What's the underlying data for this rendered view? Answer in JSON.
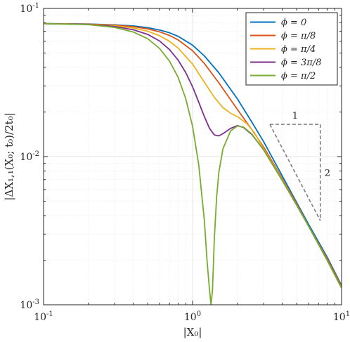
{
  "chart_data": {
    "type": "line",
    "xscale": "log",
    "yscale": "log",
    "xlim": [
      0.1,
      10
    ],
    "ylim": [
      0.001,
      0.1
    ],
    "grid": true,
    "minor_grid": true,
    "legend_position": "top-right",
    "xlabel": "|X₀|",
    "ylabel": "|ΔX₁,₁(X₀; t₀)/2t₀|",
    "x_ticks": [
      {
        "value": 0.1,
        "base": "10",
        "exp": "-1"
      },
      {
        "value": 1,
        "base": "10",
        "exp": "0"
      },
      {
        "value": 10,
        "base": "10",
        "exp": "1"
      }
    ],
    "y_ticks": [
      {
        "value": 0.1,
        "base": "10",
        "exp": "-1"
      },
      {
        "value": 0.01,
        "base": "10",
        "exp": "-2"
      },
      {
        "value": 0.001,
        "base": "10",
        "exp": "-3"
      }
    ],
    "series": [
      {
        "name": "ϕ = 0",
        "color": "#0072BD",
        "x": [
          0.1,
          0.2,
          0.3,
          0.4,
          0.5,
          0.6,
          0.7,
          0.8,
          1.0,
          1.2,
          1.5,
          2.0,
          2.5,
          3.0,
          4.0,
          5.0,
          6.0,
          8.0,
          10.0
        ],
        "y": [
          0.079,
          0.0785,
          0.0775,
          0.0762,
          0.0742,
          0.0715,
          0.0685,
          0.0648,
          0.0565,
          0.0478,
          0.0368,
          0.0245,
          0.0171,
          0.0126,
          0.0074,
          0.0049,
          0.0035,
          0.0021,
          0.00135
        ]
      },
      {
        "name": "ϕ = π/8",
        "color": "#D95319",
        "x": [
          0.1,
          0.2,
          0.3,
          0.4,
          0.5,
          0.6,
          0.7,
          0.8,
          1.0,
          1.2,
          1.5,
          2.0,
          2.5,
          3.0,
          4.0,
          5.0,
          6.0,
          8.0,
          10.0
        ],
        "y": [
          0.079,
          0.0783,
          0.0771,
          0.0753,
          0.0728,
          0.0695,
          0.0657,
          0.0613,
          0.0518,
          0.0425,
          0.0315,
          0.0208,
          0.0152,
          0.0116,
          0.0071,
          0.0048,
          0.0034,
          0.00205,
          0.00133
        ]
      },
      {
        "name": "ϕ = π/4",
        "color": "#EDB120",
        "x": [
          0.1,
          0.2,
          0.3,
          0.4,
          0.5,
          0.6,
          0.7,
          0.8,
          1.0,
          1.2,
          1.4,
          1.6,
          1.8,
          2.0,
          2.3,
          2.6,
          3.0,
          4.0,
          5.0,
          6.0,
          8.0,
          10.0
        ],
        "y": [
          0.079,
          0.0781,
          0.0764,
          0.0738,
          0.0702,
          0.0655,
          0.06,
          0.054,
          0.0421,
          0.0318,
          0.0251,
          0.0214,
          0.0196,
          0.0186,
          0.0168,
          0.0145,
          0.0113,
          0.007,
          0.0047,
          0.0034,
          0.002,
          0.0013
        ]
      },
      {
        "name": "ϕ = 3π/8",
        "color": "#7E2F8E",
        "x": [
          0.1,
          0.2,
          0.3,
          0.4,
          0.5,
          0.6,
          0.7,
          0.8,
          0.9,
          1.0,
          1.1,
          1.2,
          1.3,
          1.4,
          1.5,
          1.6,
          1.8,
          2.0,
          2.2,
          2.5,
          3.0,
          4.0,
          5.0,
          6.0,
          8.0,
          10.0
        ],
        "y": [
          0.079,
          0.0779,
          0.0755,
          0.0718,
          0.0668,
          0.0603,
          0.0528,
          0.0448,
          0.0369,
          0.0296,
          0.0233,
          0.0186,
          0.0155,
          0.014,
          0.0138,
          0.0143,
          0.0155,
          0.0162,
          0.0157,
          0.0141,
          0.0111,
          0.0069,
          0.0047,
          0.0034,
          0.002,
          0.0013
        ]
      },
      {
        "name": "ϕ = π/2",
        "color": "#77AC30",
        "x": [
          0.1,
          0.2,
          0.3,
          0.4,
          0.5,
          0.6,
          0.7,
          0.8,
          0.9,
          1.0,
          1.1,
          1.2,
          1.25,
          1.3,
          1.33,
          1.36,
          1.4,
          1.45,
          1.5,
          1.6,
          1.8,
          2.0,
          2.2,
          2.5,
          3.0,
          4.0,
          5.0,
          6.0,
          8.0,
          10.0
        ],
        "y": [
          0.079,
          0.0777,
          0.0745,
          0.0693,
          0.0624,
          0.0537,
          0.0441,
          0.0343,
          0.0246,
          0.016,
          0.0088,
          0.0037,
          0.002,
          0.00125,
          0.001,
          0.00125,
          0.0028,
          0.0053,
          0.0078,
          0.0113,
          0.0149,
          0.0161,
          0.0158,
          0.0142,
          0.0111,
          0.0069,
          0.0047,
          0.0034,
          0.002,
          0.0013
        ]
      }
    ],
    "slope_triangle": {
      "corner": [
        3.3,
        0.0165
      ],
      "right_x": 7.2,
      "bottom_y": 0.0037,
      "run_label": "1",
      "rise_label": "2",
      "color": "#808080"
    }
  }
}
